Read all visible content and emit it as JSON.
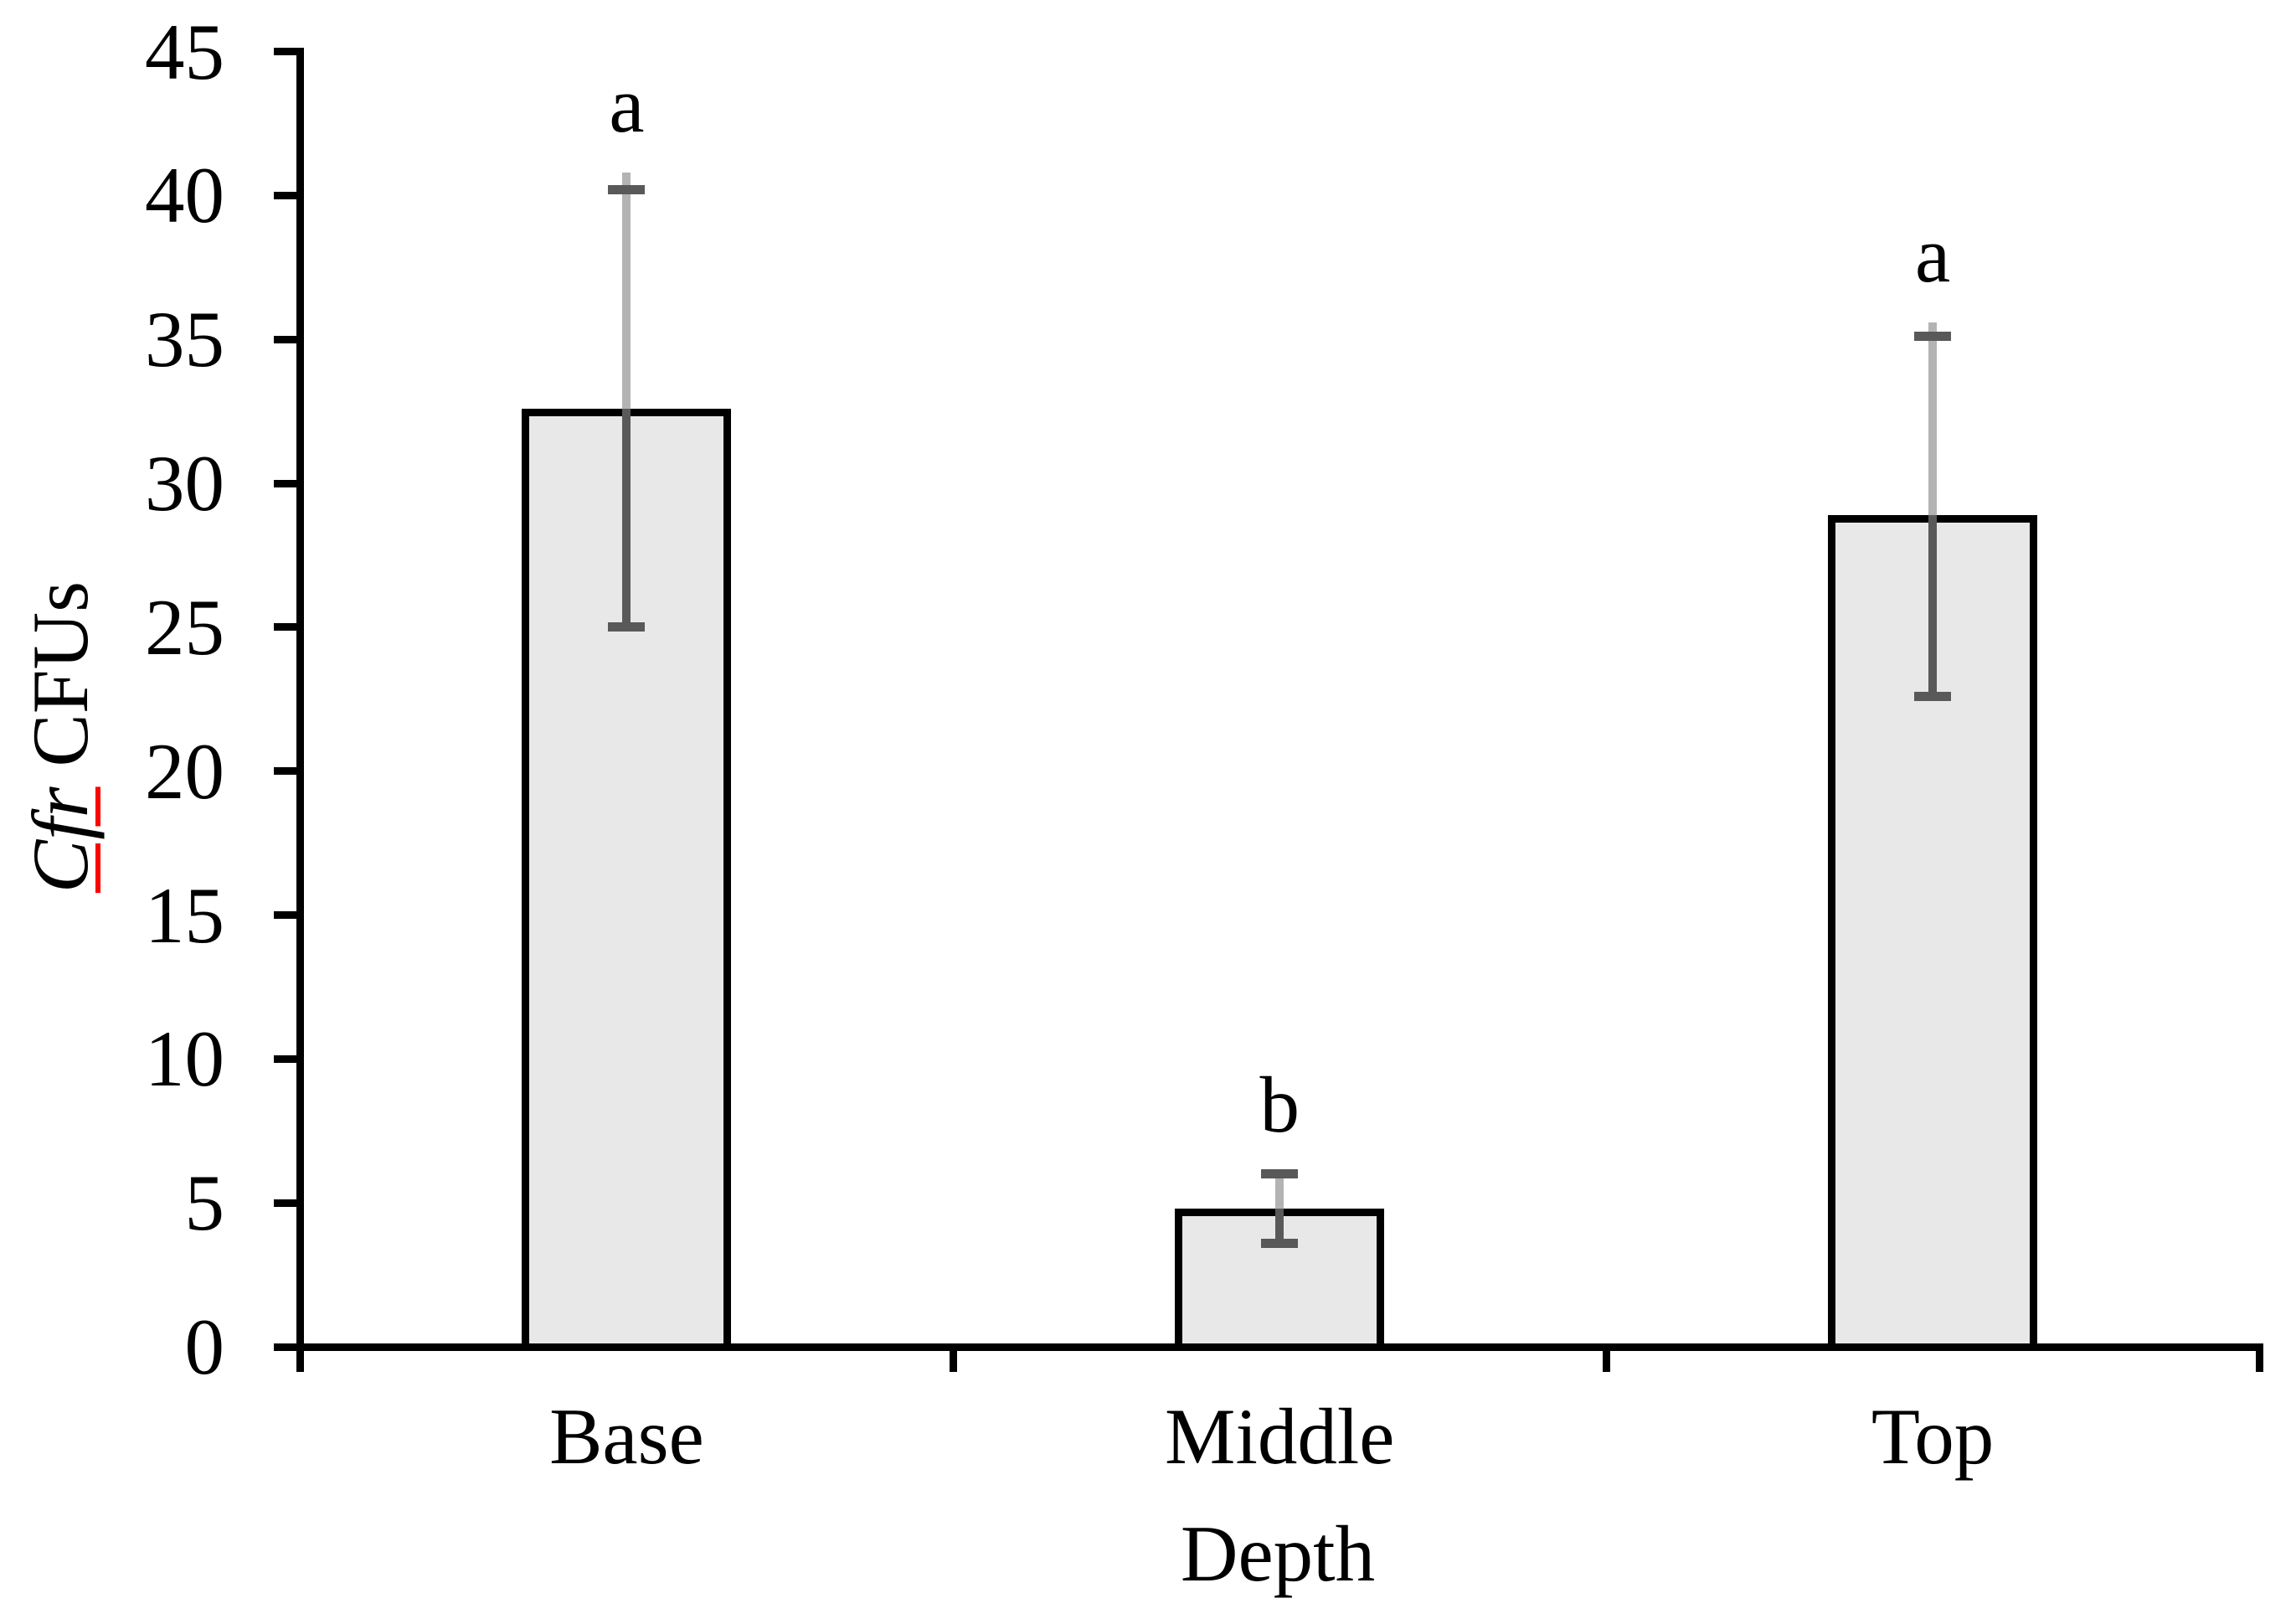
{
  "figure": {
    "background": "#ffffff"
  },
  "y_axis": {
    "title_italic_part": "Cfr",
    "title_regular_part": " CFUs",
    "underline_color": "#ff0000",
    "tick_labels": [
      "0",
      "5",
      "10",
      "15",
      "20",
      "25",
      "30",
      "35",
      "40",
      "45"
    ]
  },
  "x_axis": {
    "title": "Depth",
    "category_labels": [
      "Base",
      "Middle",
      "Top"
    ]
  },
  "chart_data": {
    "type": "bar",
    "title": "",
    "xlabel": "Depth",
    "ylabel": "Cfr CFUs",
    "ylabel_italic_prefix": "Cfr",
    "categories": [
      "Base",
      "Middle",
      "Top"
    ],
    "values": [
      32.6,
      4.8,
      28.9
    ],
    "error_upper": [
      40.2,
      6.0,
      35.1
    ],
    "error_lower": [
      25.0,
      3.6,
      22.6
    ],
    "error_whisker_tip_upper": [
      40.8,
      6.05,
      35.6
    ],
    "significance_letters": [
      "a",
      "b",
      "a"
    ],
    "ylim": [
      0,
      45
    ],
    "ytick_step": 5,
    "grid": "off",
    "legend": "none",
    "colors": {
      "bar_fill": "#e8e8e8",
      "bar_border": "#000000",
      "error_line_light": "#b3b3b3",
      "error_dark": "#595959",
      "axis": "#000000",
      "ylabel_underline": "#ff0000"
    }
  }
}
